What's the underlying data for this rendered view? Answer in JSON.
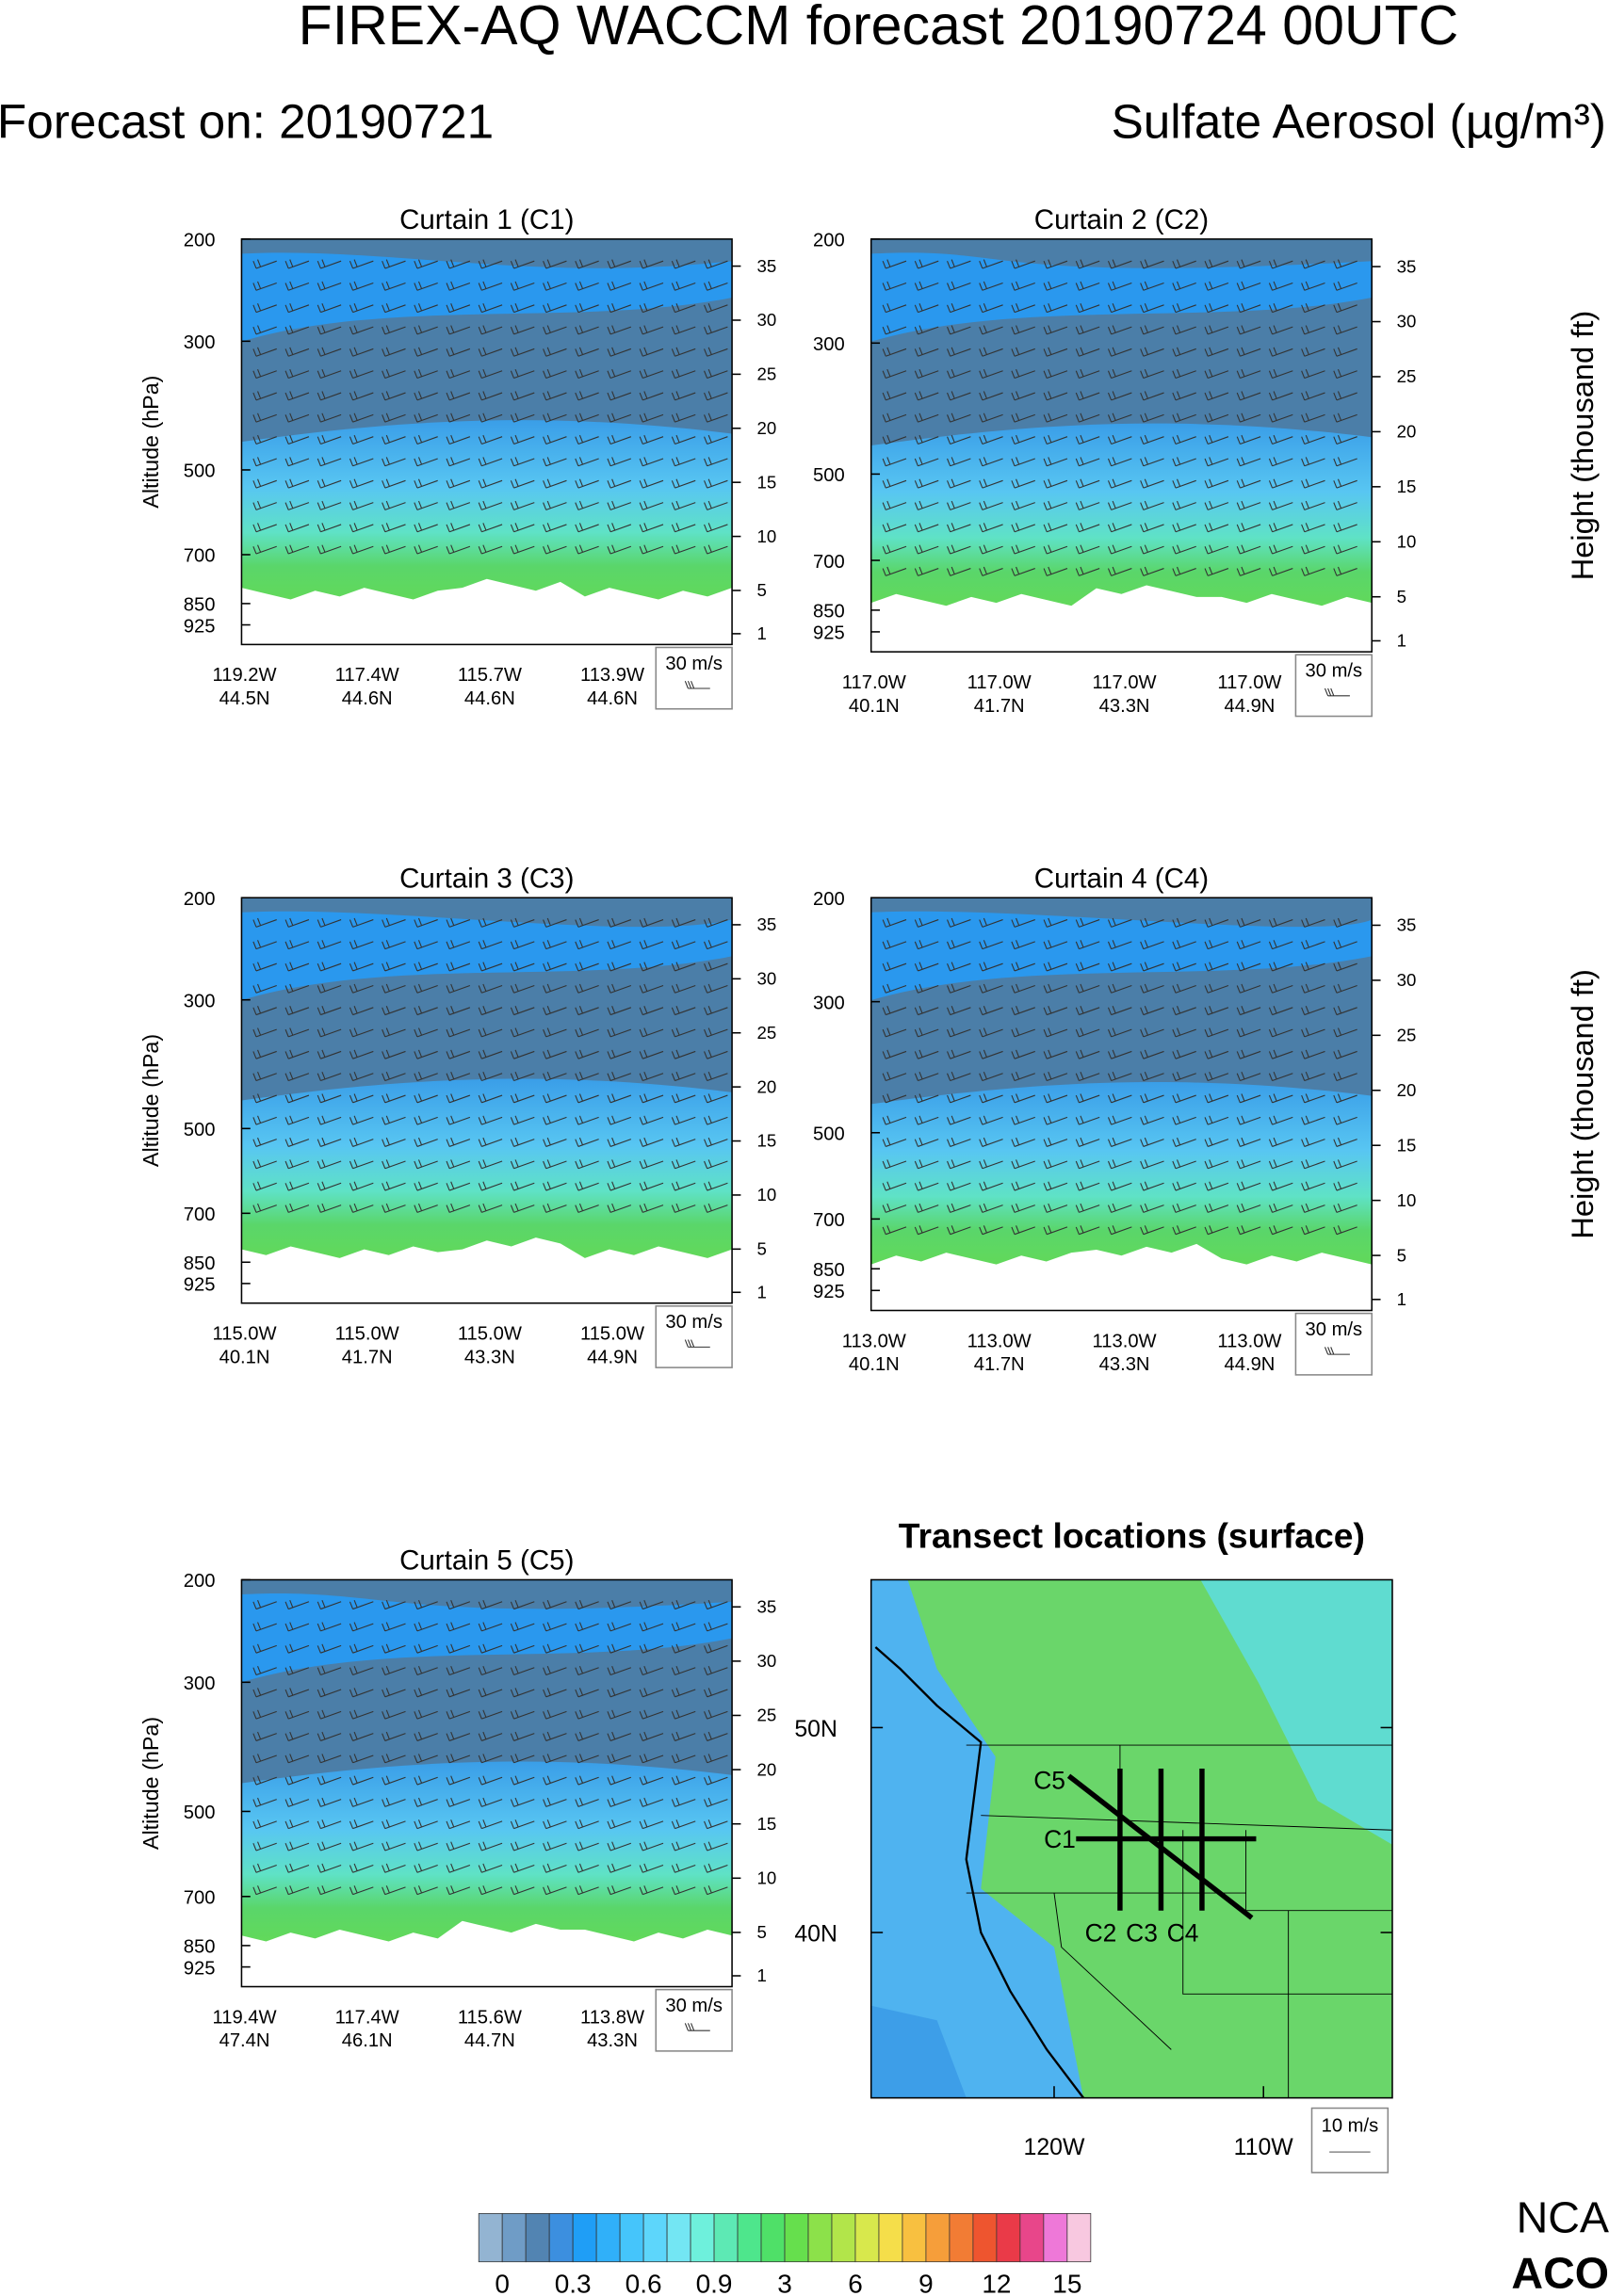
{
  "header": {
    "title": "FIREX-AQ WACCM forecast 20190724 00UTC",
    "forecast": "Forecast on: 20190721",
    "variable": "Sulfate Aerosol (µg/m³)"
  },
  "curtain_axes": {
    "ylabel": "Altitude (hPa)",
    "y2label": "Height (thousand ft)",
    "ylim": [
      1000,
      200
    ],
    "log": true,
    "yticks": [
      200,
      300,
      500,
      700,
      850,
      925
    ],
    "y2lim": [
      0,
      37.5
    ],
    "y2ticks": [
      35,
      30,
      25,
      20,
      15,
      10,
      5,
      1
    ],
    "wind_legend": "30 m/s"
  },
  "curtains": [
    {
      "title": "Curtain 1 (C1)",
      "x_labels": [
        [
          "119.2W",
          "44.5N"
        ],
        [
          "117.4W",
          "44.6N"
        ],
        [
          "115.7W",
          "44.6N"
        ],
        [
          "113.9W",
          "44.6N"
        ]
      ]
    },
    {
      "title": "Curtain 2 (C2)",
      "x_labels": [
        [
          "117.0W",
          "40.1N"
        ],
        [
          "117.0W",
          "41.7N"
        ],
        [
          "117.0W",
          "43.3N"
        ],
        [
          "117.0W",
          "44.9N"
        ]
      ]
    },
    {
      "title": "Curtain 3 (C3)",
      "x_labels": [
        [
          "115.0W",
          "40.1N"
        ],
        [
          "115.0W",
          "41.7N"
        ],
        [
          "115.0W",
          "43.3N"
        ],
        [
          "115.0W",
          "44.9N"
        ]
      ]
    },
    {
      "title": "Curtain 4 (C4)",
      "x_labels": [
        [
          "113.0W",
          "40.1N"
        ],
        [
          "113.0W",
          "41.7N"
        ],
        [
          "113.0W",
          "43.3N"
        ],
        [
          "113.0W",
          "44.9N"
        ]
      ]
    },
    {
      "title": "Curtain 5 (C5)",
      "x_labels": [
        [
          "119.4W",
          "47.4N"
        ],
        [
          "117.4W",
          "46.1N"
        ],
        [
          "115.6W",
          "44.7N"
        ],
        [
          "113.8W",
          "43.3N"
        ]
      ]
    }
  ],
  "map": {
    "title": "Transect locations (surface)",
    "lat_labels": [
      "50N",
      "40N"
    ],
    "lon_labels": [
      "120W",
      "110W"
    ],
    "transects": [
      "C1",
      "C2",
      "C3",
      "C4",
      "C5"
    ],
    "wind_legend": "10 m/s"
  },
  "colorbar": {
    "labels": [
      "0",
      "0.3",
      "0.6",
      "0.9",
      "3",
      "6",
      "9",
      "12",
      "15"
    ],
    "colors": [
      "#93b4d2",
      "#6f9cc6",
      "#5284b2",
      "#3c8fdf",
      "#1f9ef6",
      "#30b0f9",
      "#45c5fb",
      "#5dd6fb",
      "#73e6f3",
      "#6ef0dc",
      "#5de9b4",
      "#4ee68c",
      "#4fe068",
      "#66df4d",
      "#8ce14a",
      "#b2e54a",
      "#d8e84c",
      "#f5de4a",
      "#f8c040",
      "#f69e3a",
      "#f27c34",
      "#ee552f",
      "#ea3a48",
      "#e8468a",
      "#ee78d8",
      "#f8c8e0"
    ]
  },
  "logo": [
    "NCA",
    "ACO"
  ]
}
